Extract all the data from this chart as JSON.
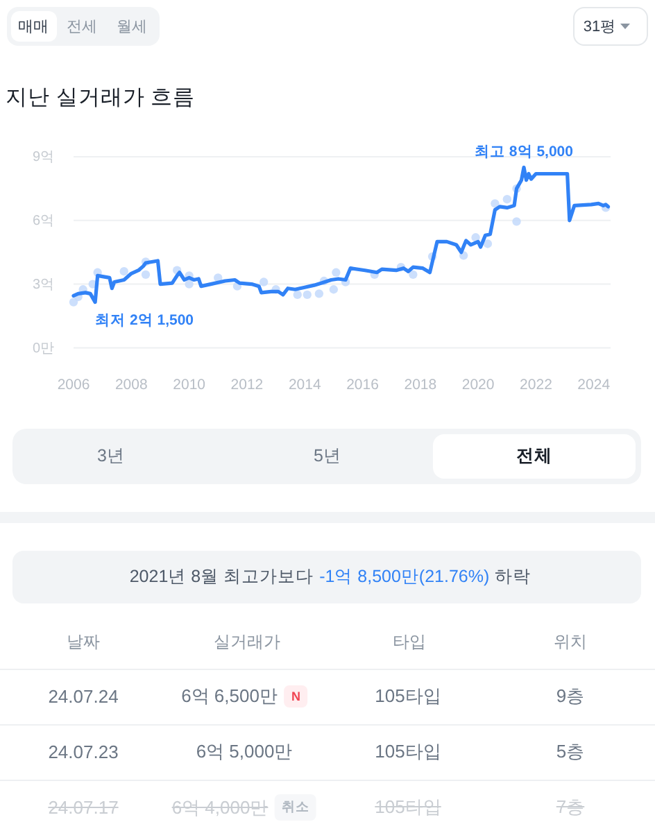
{
  "chart_data": {
    "type": "line",
    "title": "지난 실거래가 흐름",
    "xlim": [
      "2006-01",
      "2024-08"
    ],
    "xticks": [
      "2006",
      "2008",
      "2010",
      "2012",
      "2014",
      "2016",
      "2018",
      "2020",
      "2022",
      "2024"
    ],
    "ylim": [
      0,
      9
    ],
    "yticks": [
      {
        "value": 0,
        "label": "0만"
      },
      {
        "value": 3,
        "label": "3억"
      },
      {
        "value": 6,
        "label": "6억"
      },
      {
        "value": 9,
        "label": "9억"
      }
    ],
    "grid": "y",
    "series": [
      {
        "type": "scatter",
        "marker": "circle",
        "color": "#c3d9fb",
        "x": [
          "2006-01",
          "2006-03",
          "2006-05",
          "2006-09",
          "2006-11",
          "2007-10",
          "2008-07",
          "2008-07",
          "2009-08",
          "2010-01",
          "2010-01",
          "2011-01",
          "2011-09",
          "2012-08",
          "2013-01",
          "2013-10",
          "2014-02",
          "2014-07",
          "2014-09",
          "2015-01",
          "2015-02",
          "2015-06",
          "2016-06",
          "2017-05",
          "2017-10",
          "2018-06",
          "2019-07",
          "2019-12",
          "2020-05",
          "2020-08",
          "2021-01",
          "2021-05",
          "2021-05",
          "2024-06"
        ],
        "values": [
          2.15,
          2.4,
          2.75,
          3.0,
          3.55,
          3.6,
          3.45,
          4.05,
          3.65,
          3.0,
          3.4,
          3.3,
          2.9,
          3.1,
          2.75,
          2.5,
          2.5,
          2.55,
          3.15,
          2.75,
          3.55,
          3.1,
          3.45,
          3.8,
          3.45,
          4.3,
          4.35,
          5.2,
          4.9,
          6.8,
          7.0,
          5.95,
          7.5,
          6.6
        ]
      },
      {
        "color": "#3182f6",
        "x": [
          "2006-01",
          "2006-03",
          "2006-06",
          "2006-08",
          "2006-10",
          "2006-11",
          "2007-04",
          "2007-05",
          "2007-06",
          "2007-10",
          "2008-01",
          "2008-04",
          "2008-06",
          "2008-07",
          "2008-12",
          "2009-01",
          "2009-06",
          "2009-08",
          "2009-09",
          "2009-11",
          "2010-01",
          "2010-03",
          "2010-05",
          "2010-06",
          "2010-10",
          "2011-04",
          "2011-08",
          "2011-10",
          "2012-03",
          "2012-06",
          "2012-07",
          "2012-11",
          "2013-02",
          "2013-04",
          "2013-06",
          "2013-09",
          "2014-01",
          "2014-05",
          "2014-08",
          "2014-12",
          "2015-03",
          "2015-06",
          "2015-08",
          "2016-02",
          "2016-07",
          "2016-09",
          "2017-03",
          "2017-06",
          "2017-08",
          "2017-10",
          "2018-02",
          "2018-05",
          "2018-08",
          "2018-12",
          "2019-04",
          "2019-06",
          "2019-08",
          "2019-10",
          "2020-01",
          "2020-02",
          "2020-04",
          "2020-06",
          "2020-08",
          "2020-10",
          "2021-01",
          "2021-04",
          "2021-05",
          "2021-07",
          "2021-08",
          "2021-09",
          "2021-10",
          "2021-11",
          "2022-01",
          "2023-02",
          "2023-03",
          "2023-05",
          "2023-12",
          "2024-03",
          "2024-05",
          "2024-06",
          "2024-07"
        ],
        "values": [
          2.45,
          2.55,
          2.6,
          2.55,
          2.15,
          3.4,
          3.3,
          2.8,
          3.1,
          3.2,
          3.5,
          3.65,
          3.85,
          4.0,
          4.1,
          3.0,
          3.05,
          3.4,
          3.55,
          3.2,
          3.3,
          3.2,
          3.25,
          2.9,
          3.0,
          3.15,
          3.2,
          3.05,
          3.0,
          2.9,
          2.6,
          2.65,
          2.65,
          2.5,
          2.8,
          2.75,
          2.85,
          2.95,
          3.05,
          3.2,
          3.25,
          3.2,
          3.75,
          3.65,
          3.55,
          3.7,
          3.65,
          3.75,
          3.6,
          3.8,
          3.75,
          3.55,
          5.0,
          5.0,
          4.85,
          4.5,
          5.05,
          4.85,
          5.0,
          4.75,
          5.3,
          5.35,
          6.5,
          6.65,
          6.6,
          6.7,
          7.5,
          7.9,
          8.5,
          7.9,
          8.2,
          7.95,
          8.2,
          8.2,
          6.0,
          6.7,
          6.75,
          6.8,
          6.7,
          6.75,
          6.65
        ]
      }
    ],
    "annotations": [
      {
        "text": "최고 8억 5,000",
        "x": "2021-08",
        "y": 8.5
      },
      {
        "text": "최저 2억 1,500",
        "x": "2006-10",
        "y": 2.15
      },
      "매매",
      "전세",
      "월세",
      "31평",
      "3년",
      "5년",
      "전체",
      "2021년 8월 최고가보다",
      "-1억 8,500만(21.76%)",
      "하락",
      "날짜",
      "실거래가",
      "타입",
      "위치",
      "24.07.24",
      "6억 6,500만",
      "N",
      "105타입",
      "9층",
      "24.07.23",
      "6억 5,000만",
      "105타입",
      "5층",
      "24.07.17",
      "6억 4,000만",
      "취소",
      "105타입",
      "7층"
    ]
  }
}
